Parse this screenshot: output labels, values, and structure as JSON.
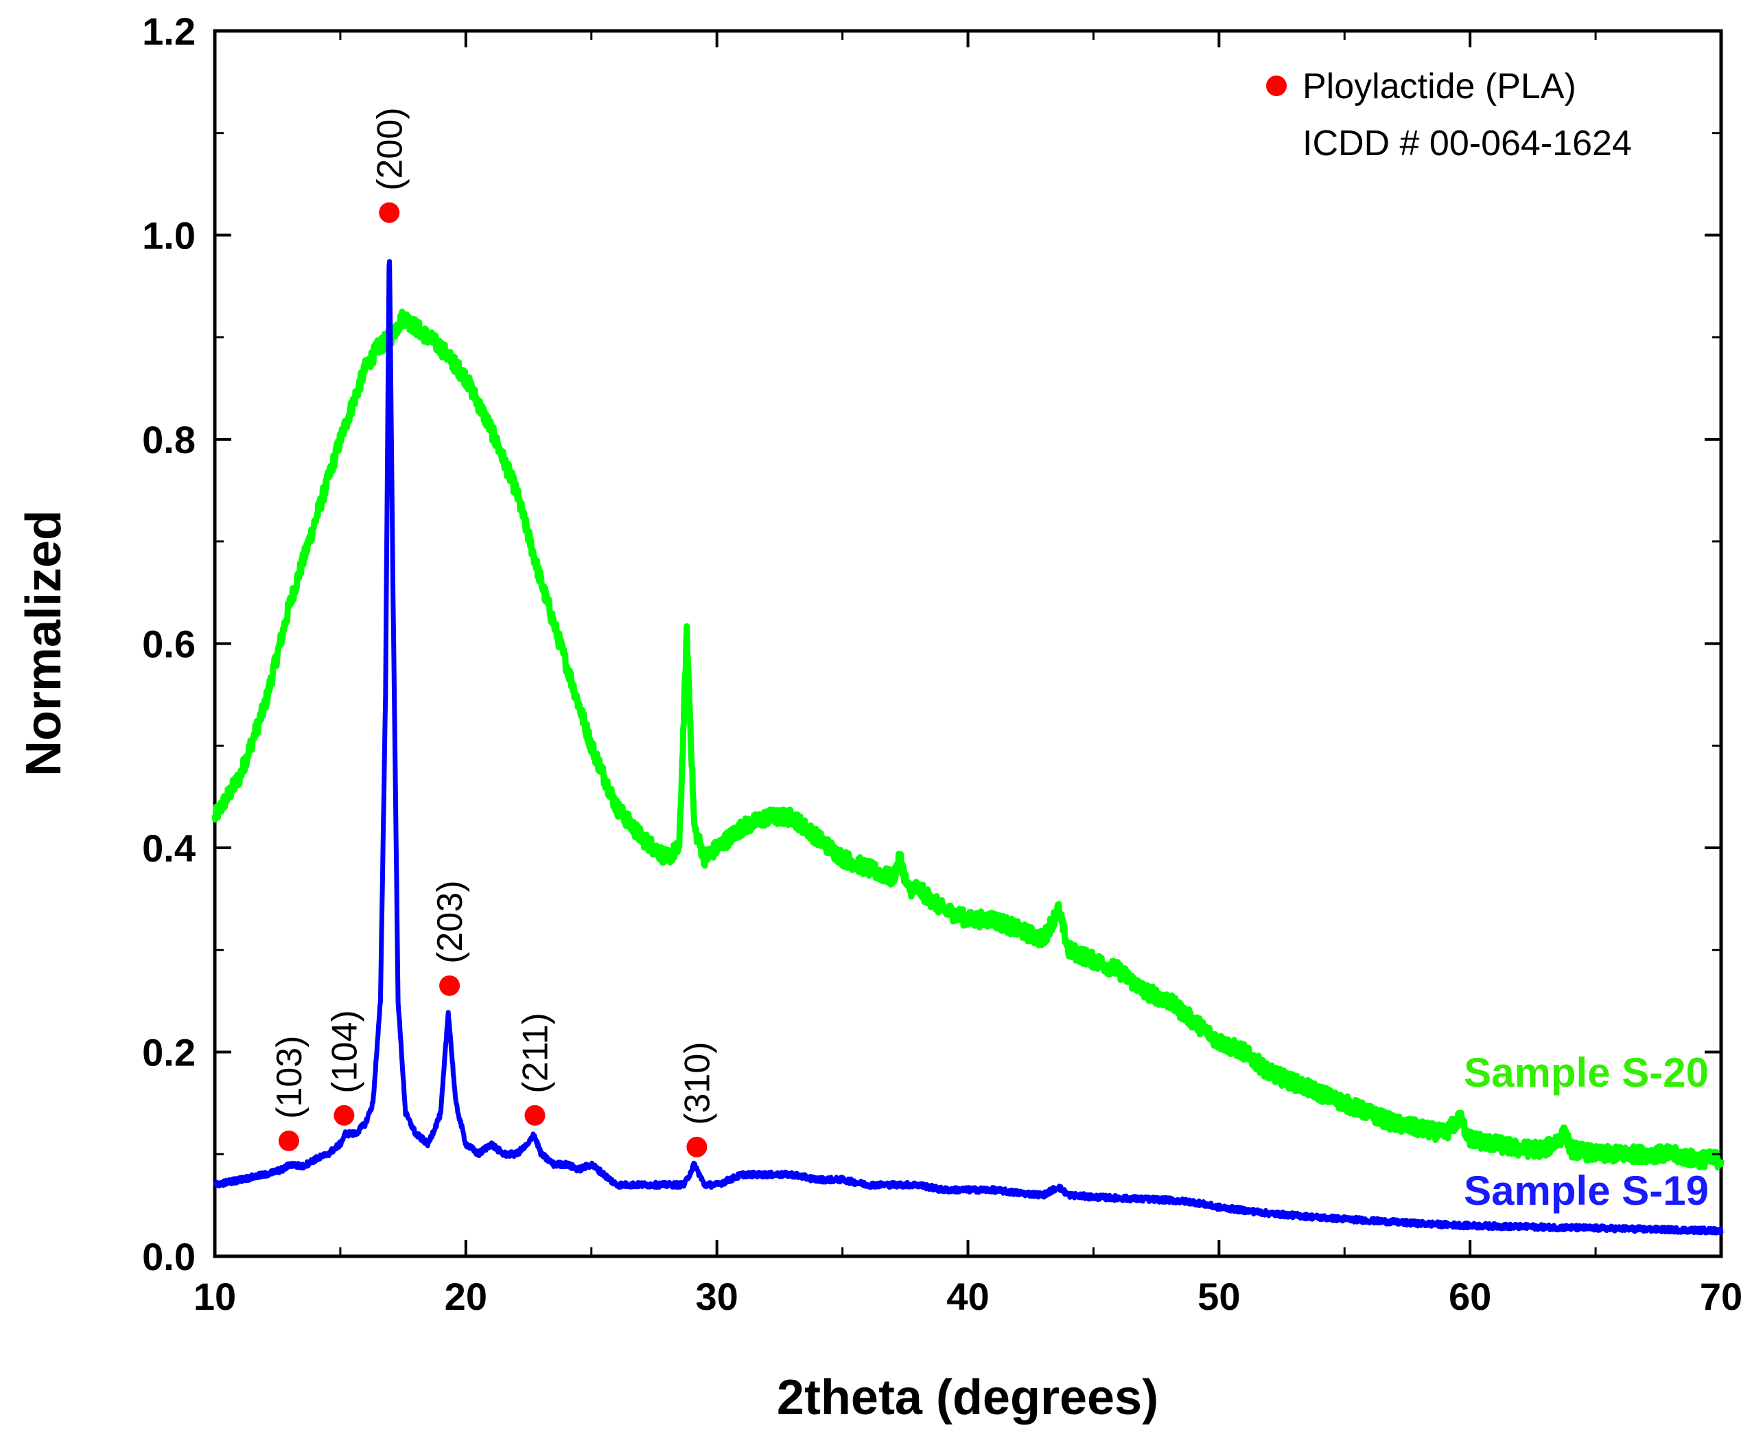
{
  "chart_data": {
    "type": "line",
    "title": "",
    "xlabel": "2theta (degrees)",
    "ylabel": "Normalized",
    "xlim": [
      10,
      70
    ],
    "ylim": [
      0.0,
      1.2
    ],
    "x_ticks": [
      10,
      20,
      30,
      40,
      50,
      60,
      70
    ],
    "y_ticks": [
      "0.0",
      "0.2",
      "0.4",
      "0.6",
      "0.8",
      "1.0",
      "1.2"
    ],
    "grid": false,
    "legend": {
      "position": "top-right",
      "marker_color": "#ff0000",
      "lines": [
        "Ploylactide (PLA)",
        "ICDD # 00-064-1624"
      ]
    },
    "series": [
      {
        "name": "Sample S-20",
        "color": "#00ff00",
        "label_color": "#33ee00",
        "points": [
          [
            10,
            0.43
          ],
          [
            11,
            0.47
          ],
          [
            12,
            0.54
          ],
          [
            13,
            0.64
          ],
          [
            14,
            0.72
          ],
          [
            15,
            0.8
          ],
          [
            16,
            0.87
          ],
          [
            16.5,
            0.89
          ],
          [
            17,
            0.9
          ],
          [
            17.5,
            0.92
          ],
          [
            18,
            0.91
          ],
          [
            19,
            0.89
          ],
          [
            20,
            0.86
          ],
          [
            21,
            0.81
          ],
          [
            22,
            0.75
          ],
          [
            23,
            0.66
          ],
          [
            24,
            0.58
          ],
          [
            25,
            0.5
          ],
          [
            26,
            0.44
          ],
          [
            27,
            0.41
          ],
          [
            28,
            0.39
          ],
          [
            28.5,
            0.4
          ],
          [
            28.8,
            0.61
          ],
          [
            29.1,
            0.42
          ],
          [
            29.5,
            0.39
          ],
          [
            30,
            0.4
          ],
          [
            31,
            0.42
          ],
          [
            32,
            0.43
          ],
          [
            33,
            0.43
          ],
          [
            34,
            0.41
          ],
          [
            35,
            0.39
          ],
          [
            36,
            0.38
          ],
          [
            37,
            0.37
          ],
          [
            37.3,
            0.39
          ],
          [
            37.6,
            0.36
          ],
          [
            38,
            0.36
          ],
          [
            39,
            0.34
          ],
          [
            40,
            0.33
          ],
          [
            41,
            0.33
          ],
          [
            42,
            0.32
          ],
          [
            43,
            0.31
          ],
          [
            43.6,
            0.34
          ],
          [
            44,
            0.3
          ],
          [
            45,
            0.29
          ],
          [
            46,
            0.28
          ],
          [
            47,
            0.26
          ],
          [
            48,
            0.25
          ],
          [
            49,
            0.23
          ],
          [
            50,
            0.21
          ],
          [
            51,
            0.2
          ],
          [
            52,
            0.18
          ],
          [
            53,
            0.17
          ],
          [
            54,
            0.16
          ],
          [
            55,
            0.15
          ],
          [
            56,
            0.14
          ],
          [
            57,
            0.13
          ],
          [
            58,
            0.125
          ],
          [
            59,
            0.12
          ],
          [
            59.6,
            0.135
          ],
          [
            60,
            0.115
          ],
          [
            61,
            0.11
          ],
          [
            62,
            0.105
          ],
          [
            63,
            0.105
          ],
          [
            63.8,
            0.12
          ],
          [
            64,
            0.105
          ],
          [
            65,
            0.1
          ],
          [
            66,
            0.1
          ],
          [
            67,
            0.1
          ],
          [
            68,
            0.1
          ],
          [
            69,
            0.095
          ],
          [
            70,
            0.095
          ]
        ]
      },
      {
        "name": "Sample S-19",
        "color": "#0000ff",
        "label_color": "#1a1aff",
        "points": [
          [
            10,
            0.07
          ],
          [
            11,
            0.075
          ],
          [
            12,
            0.08
          ],
          [
            12.7,
            0.085
          ],
          [
            13,
            0.09
          ],
          [
            13.5,
            0.088
          ],
          [
            14,
            0.095
          ],
          [
            14.5,
            0.1
          ],
          [
            15,
            0.11
          ],
          [
            15.2,
            0.12
          ],
          [
            15.6,
            0.12
          ],
          [
            16,
            0.13
          ],
          [
            16.3,
            0.15
          ],
          [
            16.6,
            0.25
          ],
          [
            16.8,
            0.55
          ],
          [
            16.95,
            1.0
          ],
          [
            17.1,
            0.65
          ],
          [
            17.3,
            0.25
          ],
          [
            17.6,
            0.14
          ],
          [
            18,
            0.12
          ],
          [
            18.5,
            0.11
          ],
          [
            19,
            0.14
          ],
          [
            19.3,
            0.24
          ],
          [
            19.6,
            0.15
          ],
          [
            20,
            0.11
          ],
          [
            20.5,
            0.1
          ],
          [
            21,
            0.11
          ],
          [
            21.5,
            0.1
          ],
          [
            22,
            0.1
          ],
          [
            22.5,
            0.11
          ],
          [
            22.7,
            0.12
          ],
          [
            23,
            0.1
          ],
          [
            23.5,
            0.09
          ],
          [
            24,
            0.09
          ],
          [
            24.5,
            0.085
          ],
          [
            25,
            0.09
          ],
          [
            25.5,
            0.08
          ],
          [
            26,
            0.07
          ],
          [
            27,
            0.07
          ],
          [
            28,
            0.07
          ],
          [
            28.7,
            0.07
          ],
          [
            29.1,
            0.09
          ],
          [
            29.5,
            0.07
          ],
          [
            30,
            0.07
          ],
          [
            31,
            0.08
          ],
          [
            32,
            0.08
          ],
          [
            33,
            0.08
          ],
          [
            34,
            0.075
          ],
          [
            35,
            0.075
          ],
          [
            36,
            0.07
          ],
          [
            37,
            0.07
          ],
          [
            38,
            0.07
          ],
          [
            39,
            0.065
          ],
          [
            40,
            0.065
          ],
          [
            41,
            0.065
          ],
          [
            42,
            0.062
          ],
          [
            43,
            0.06
          ],
          [
            43.6,
            0.068
          ],
          [
            44,
            0.06
          ],
          [
            45,
            0.058
          ],
          [
            46,
            0.057
          ],
          [
            47,
            0.056
          ],
          [
            48,
            0.055
          ],
          [
            49,
            0.053
          ],
          [
            50,
            0.048
          ],
          [
            52,
            0.042
          ],
          [
            54,
            0.038
          ],
          [
            56,
            0.035
          ],
          [
            58,
            0.032
          ],
          [
            60,
            0.03
          ],
          [
            62,
            0.029
          ],
          [
            64,
            0.028
          ],
          [
            66,
            0.027
          ],
          [
            68,
            0.026
          ],
          [
            70,
            0.025
          ]
        ]
      }
    ],
    "annotations": [
      {
        "label": "(103)",
        "x": 12.95,
        "y": 0.113
      },
      {
        "label": "(104)",
        "x": 15.15,
        "y": 0.138
      },
      {
        "label": "(200)",
        "x": 16.95,
        "y": 1.022
      },
      {
        "label": "(203)",
        "x": 19.35,
        "y": 0.265
      },
      {
        "label": "(211)",
        "x": 22.75,
        "y": 0.138
      },
      {
        "label": "(310)",
        "x": 29.2,
        "y": 0.107
      }
    ]
  }
}
